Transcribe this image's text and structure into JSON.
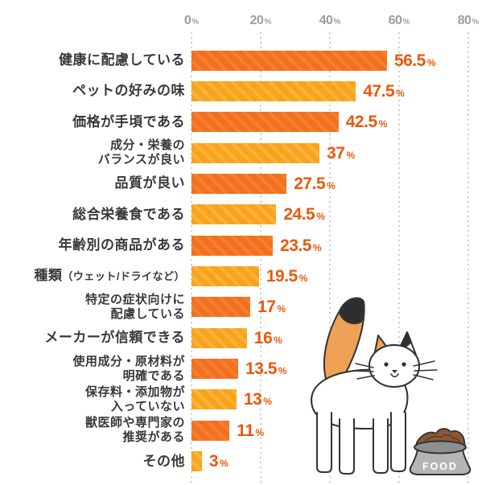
{
  "chart_data": {
    "type": "bar",
    "orientation": "horizontal",
    "title": "",
    "xlabel": "",
    "ylabel": "",
    "xlim": [
      0,
      80
    ],
    "x_ticks": [
      0,
      20,
      40,
      60,
      80
    ],
    "unit": "%",
    "grid": "dotted-vertical",
    "legend": "none",
    "categories": [
      "健康に配慮している",
      "ペットの好みの味",
      "価格が手頃である",
      "成分・栄養の\nバランスが良い",
      "品質が良い",
      "総合栄養食である",
      "年齢別の商品がある",
      "種類（ウェット/ドライなど）",
      "特定の症状向けに\n配慮している",
      "メーカーが信頼できる",
      "使用成分・原材料が\n明確である",
      "保存料・添加物が\n入っていない",
      "獣医師や専門家の\n推奨がある",
      "その他"
    ],
    "category_small_part": {
      "7": "（ウェット/ドライなど）"
    },
    "values": [
      56.5,
      47.5,
      42.5,
      37,
      27.5,
      24.5,
      23.5,
      19.5,
      17,
      16,
      13.5,
      13,
      11,
      3
    ],
    "value_labels": [
      "56.5",
      "47.5",
      "42.5",
      "37",
      "27.5",
      "24.5",
      "23.5",
      "19.5",
      "17",
      "16",
      "13.5",
      "13",
      "11",
      "3"
    ]
  },
  "colors": {
    "bar_dark": "#f3701e",
    "bar_dark_stripe": "#f67f31",
    "bar_light": "#f9a31b",
    "bar_light_stripe": "#fbb23e",
    "value_text": "#eb580c",
    "axis_text": "#9e9e9e",
    "gridline": "#cfcfcf",
    "label_text": "#3a3a3a",
    "cat_orange": "#efa155",
    "cat_black": "#2e2e2e",
    "outline": "#333333",
    "bowl_gray": "#b5b5b5",
    "bowl_rim": "#8f8f8f",
    "kibble_brown": "#8a5a35"
  },
  "illustration": {
    "description": "calico cat standing, tail up, looking at food bowl",
    "bowl_label": "FOOD"
  }
}
